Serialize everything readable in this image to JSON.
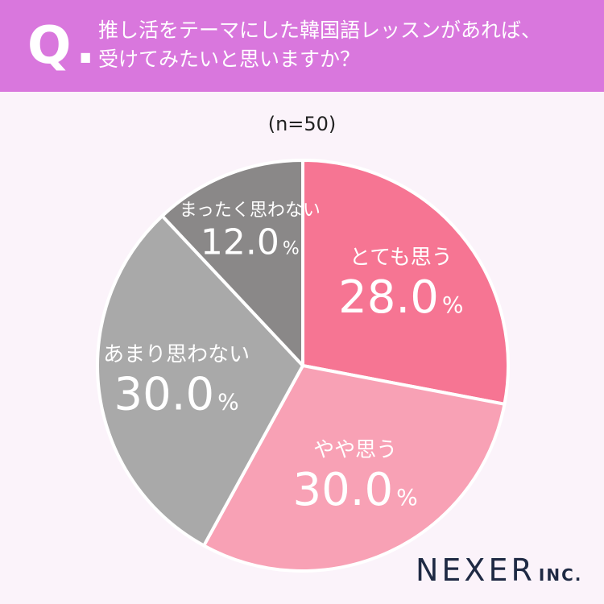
{
  "header": {
    "q_letter": "Q",
    "q_dot": ".",
    "question_line1": "推し活をテーマにした韓国語レッスンがあれば、",
    "question_line2": "受けてみたいと思いますか？"
  },
  "sample_size": "(n=50)",
  "logo": {
    "main": "NEXER",
    "sub": "INC."
  },
  "chart_data": {
    "type": "pie",
    "start_angle_deg": 0,
    "direction": "clockwise",
    "slices": [
      {
        "label": "とても思う",
        "value": 28.0,
        "value_text": "28.0",
        "unit": "%",
        "color": "#f67593"
      },
      {
        "label": "やや思う",
        "value": 30.0,
        "value_text": "30.0",
        "unit": "%",
        "color": "#f8a1b5"
      },
      {
        "label": "あまり思わない",
        "value": 30.0,
        "value_text": "30.0",
        "unit": "%",
        "color": "#a9a9a9"
      },
      {
        "label": "まったく思わない",
        "value": 12.0,
        "value_text": "12.0",
        "unit": "%",
        "color": "#8a8888"
      }
    ]
  }
}
